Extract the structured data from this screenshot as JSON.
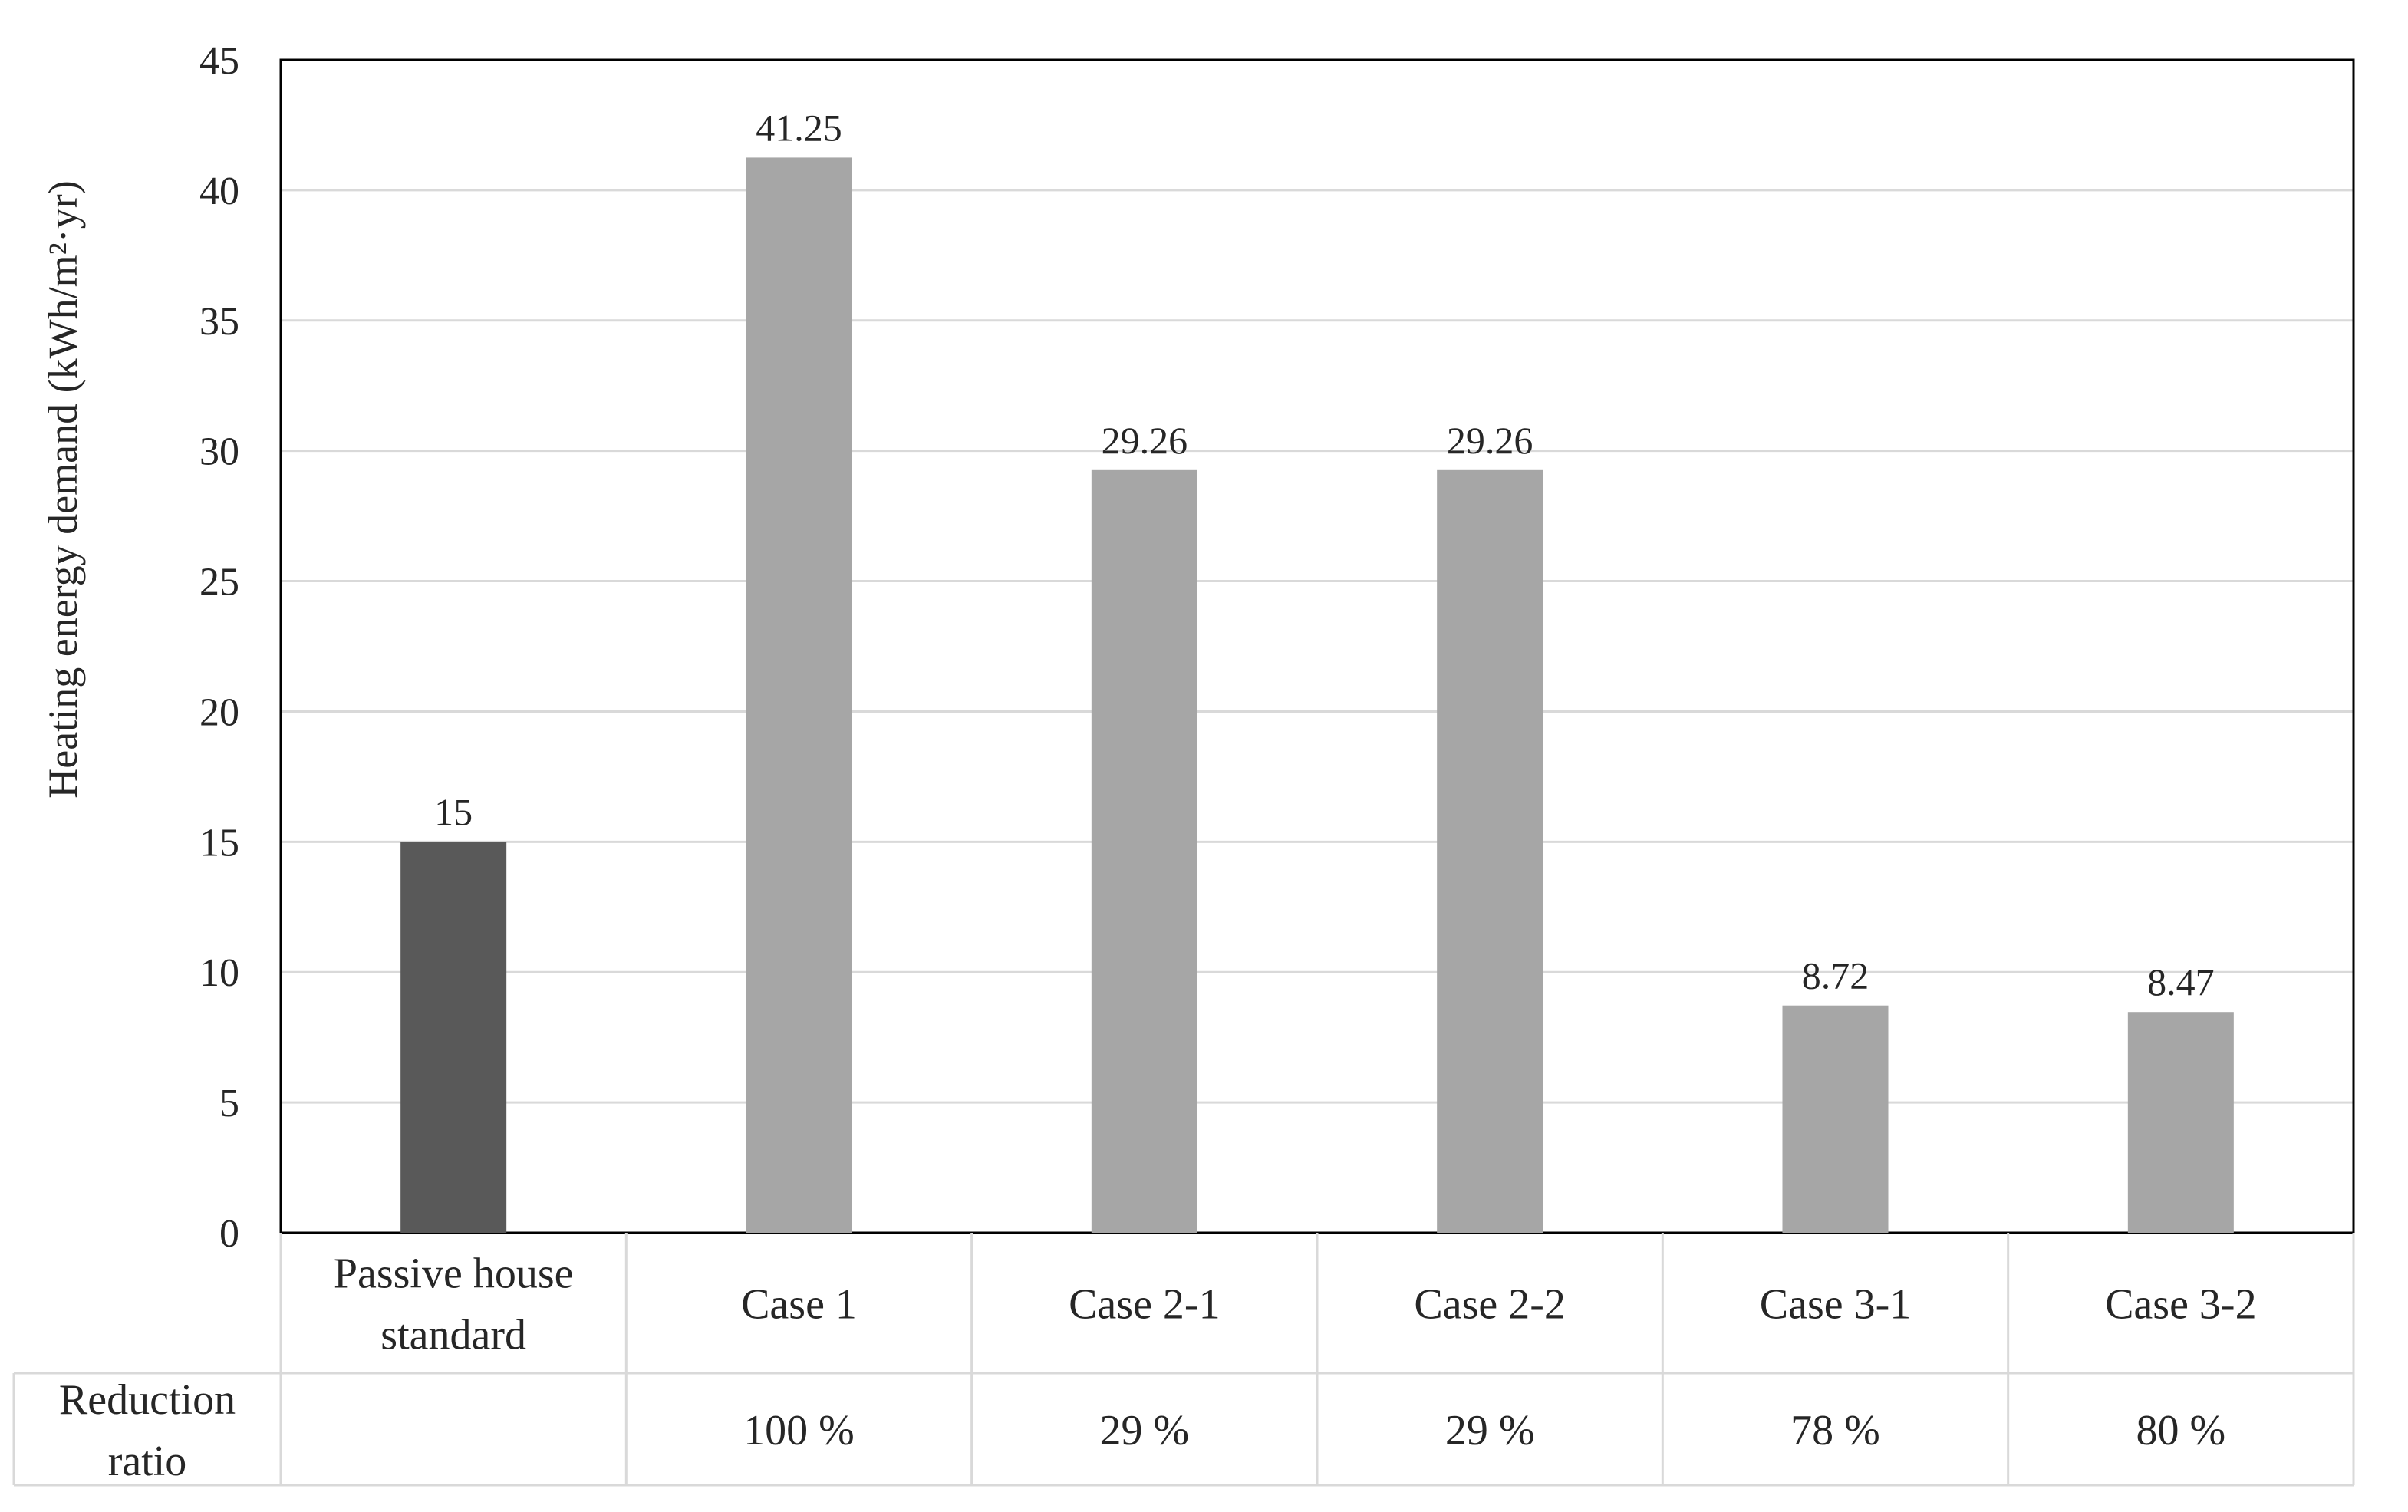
{
  "chart_data": {
    "type": "bar",
    "categories": [
      [
        "Passive house",
        "standard"
      ],
      [
        "Case 1"
      ],
      [
        "Case 2-1"
      ],
      [
        "Case 2-2"
      ],
      [
        "Case 3-1"
      ],
      [
        "Case 3-2"
      ]
    ],
    "values": [
      15,
      41.25,
      29.26,
      29.26,
      8.72,
      8.47
    ],
    "data_labels": [
      "15",
      "41.25",
      "29.26",
      "29.26",
      "8.72",
      "8.47"
    ],
    "bar_colors": [
      "#595959",
      "#a6a6a6",
      "#a6a6a6",
      "#a6a6a6",
      "#a6a6a6",
      "#a6a6a6"
    ],
    "ylabel": "Heating energy demand (kWh/m²·yr)",
    "xlabel": "",
    "ylim": [
      0,
      45
    ],
    "yticks": [
      0,
      5,
      10,
      15,
      20,
      25,
      30,
      35,
      40,
      45
    ],
    "grid": true,
    "legend": "none",
    "table": {
      "row_header": [
        "Reduction",
        "ratio"
      ],
      "values": [
        "",
        "100 %",
        "29 %",
        "29 %",
        "78 %",
        "80 %"
      ]
    }
  }
}
